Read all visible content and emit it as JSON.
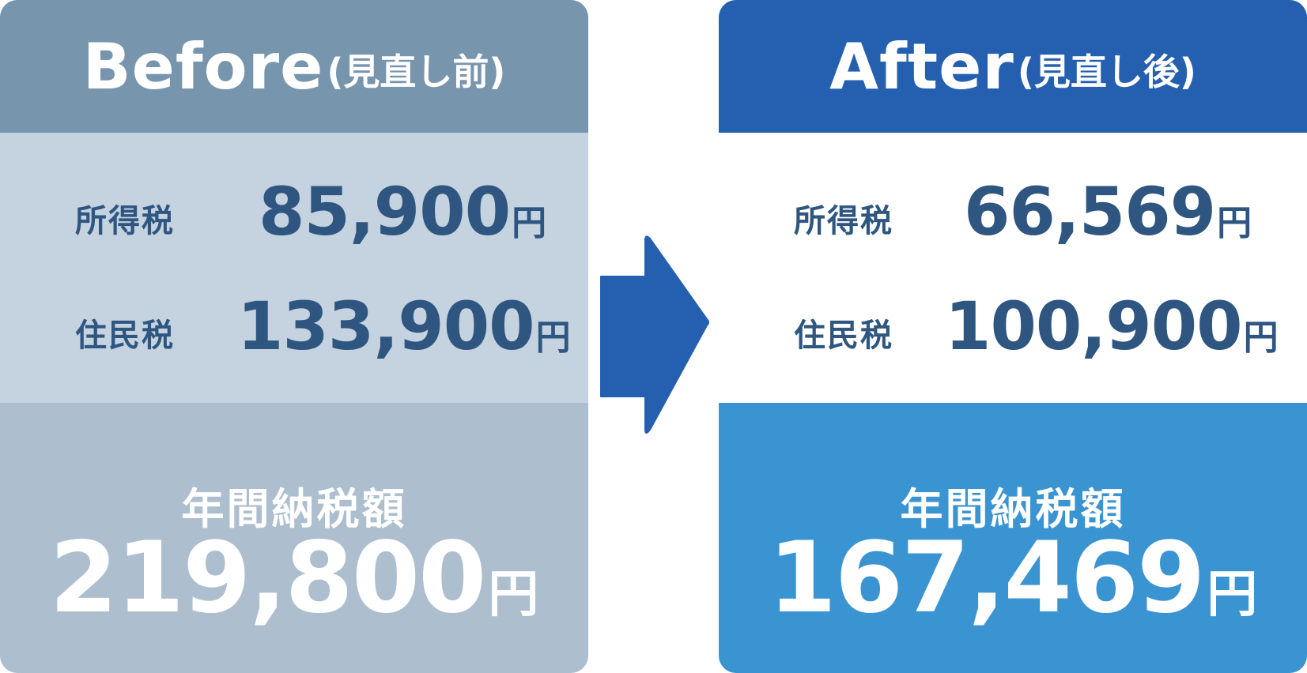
{
  "before": {
    "title": "Before",
    "subtitle": "(見直し前)",
    "rows": [
      {
        "label": "所得税",
        "amount": "85,900",
        "unit": "円"
      },
      {
        "label": "住民税",
        "amount": "133,900",
        "unit": "円"
      }
    ],
    "total_label": "年間納税額",
    "total_amount": "219,800",
    "total_unit": "円"
  },
  "after": {
    "title": "After",
    "subtitle": "(見直し後)",
    "rows": [
      {
        "label": "所得税",
        "amount": "66,569",
        "unit": "円"
      },
      {
        "label": "住民税",
        "amount": "100,900",
        "unit": "円"
      }
    ],
    "total_label": "年間納税額",
    "total_amount": "167,469",
    "total_unit": "円"
  },
  "colors": {
    "before_header": "#7895ae",
    "before_middle": "#c5d2df",
    "before_bottom": "#adbecf",
    "after_header": "#2560b0",
    "after_bottom": "#3b94d2",
    "text_dark": "#2e5680",
    "arrow": "#2560b0"
  },
  "icons": {
    "arrow": "right-arrow-icon"
  }
}
